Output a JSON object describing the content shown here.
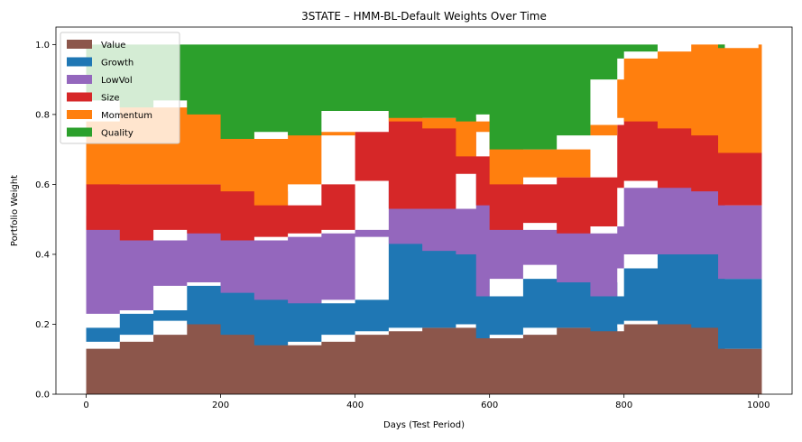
{
  "chart_data": {
    "type": "area",
    "stacked": true,
    "title": "3STATE – HMM-BL-Default Weights Over Time",
    "xlabel": "Days (Test Period)",
    "ylabel": "Portfolio Weight",
    "xlim": [
      -45,
      1050
    ],
    "ylim": [
      0,
      1.05
    ],
    "xticks": [
      0,
      200,
      400,
      600,
      800,
      1000
    ],
    "yticks": [
      0.0,
      0.2,
      0.4,
      0.6,
      0.8,
      1.0
    ],
    "ytick_labels": [
      "0.0",
      "0.2",
      "0.4",
      "0.6",
      "0.8",
      "1.0"
    ],
    "legend_position": "upper-left",
    "grid": false,
    "x": [
      0,
      50,
      100,
      150,
      200,
      250,
      300,
      350,
      400,
      450,
      500,
      550,
      580,
      600,
      650,
      700,
      750,
      790,
      800,
      850,
      900,
      940,
      950,
      1000,
      1005
    ],
    "series": [
      {
        "name": "Value",
        "color": "#8c564b",
        "values": [
          0.13,
          0.15,
          0.17,
          0.21,
          0.2,
          0.17,
          0.14,
          0.15,
          0.17,
          0.18,
          0.19,
          0.19,
          0.2,
          0.16,
          0.17,
          0.19,
          0.19,
          0.18,
          0.2,
          0.21,
          0.2,
          0.19,
          0.13,
          0.13,
          0.13
        ]
      },
      {
        "name": "Growth",
        "color": "#1f77b4",
        "values": [
          0.06,
          0.08,
          0.07,
          0.1,
          0.12,
          0.12,
          0.13,
          0.11,
          0.1,
          0.27,
          0.24,
          0.22,
          0.2,
          0.12,
          0.16,
          0.18,
          0.13,
          0.1,
          0.16,
          0.19,
          0.2,
          0.21,
          0.2,
          0.2,
          0.2
        ]
      },
      {
        "name": "LowVol",
        "color": "#9467bd",
        "values": [
          0.32,
          0.24,
          0.2,
          0.16,
          0.14,
          0.15,
          0.18,
          0.2,
          0.2,
          0.16,
          0.1,
          0.12,
          0.23,
          0.26,
          0.14,
          0.12,
          0.14,
          0.2,
          0.23,
          0.21,
          0.19,
          0.18,
          0.21,
          0.21,
          0.21
        ]
      },
      {
        "name": "Size",
        "color": "#d62728",
        "values": [
          0.16,
          0.13,
          0.16,
          0.13,
          0.14,
          0.14,
          0.09,
          0.14,
          0.28,
          0.2,
          0.25,
          0.23,
          0.05,
          0.21,
          0.13,
          0.13,
          0.16,
          0.29,
          0.2,
          0.17,
          0.17,
          0.16,
          0.15,
          0.15,
          0.15
        ]
      },
      {
        "name": "Momentum",
        "color": "#ff7f0e",
        "values": [
          0.11,
          0.24,
          0.22,
          0.24,
          0.2,
          0.15,
          0.21,
          0.14,
          0.06,
          0.0,
          0.01,
          0.03,
          0.1,
          0.05,
          0.1,
          0.08,
          0.12,
          0.13,
          0.17,
          0.2,
          0.24,
          0.26,
          0.3,
          0.31,
          0.31
        ]
      },
      {
        "name": "Quality",
        "color": "#2ca02c",
        "values": [
          0.22,
          0.16,
          0.18,
          0.16,
          0.2,
          0.27,
          0.25,
          0.26,
          0.19,
          0.19,
          0.21,
          0.21,
          0.22,
          0.2,
          0.3,
          0.3,
          0.26,
          0.1,
          0.04,
          0.02,
          0.0,
          0.0,
          0.01,
          0.0,
          0.0
        ]
      }
    ]
  }
}
